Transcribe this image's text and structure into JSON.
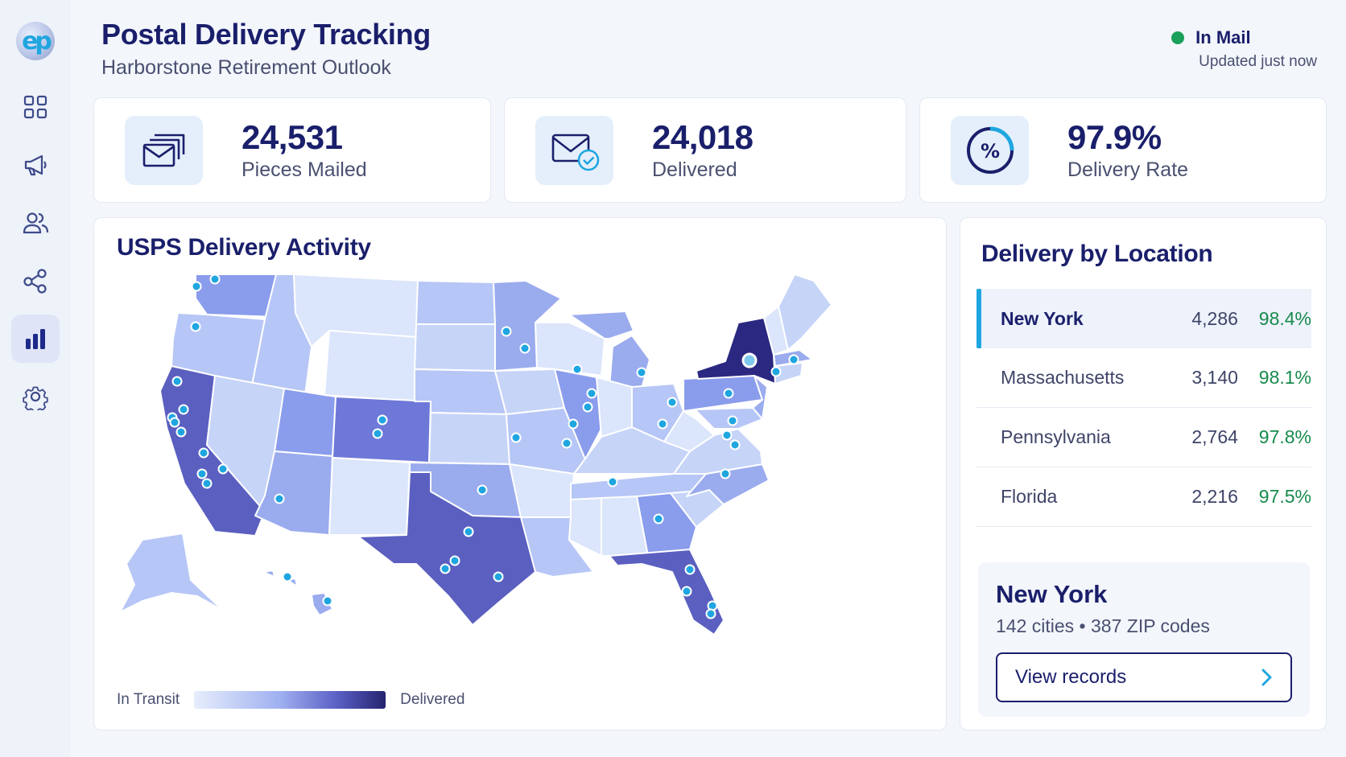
{
  "app": {
    "logo_text": "ep",
    "title": "Postal Delivery Tracking",
    "subtitle": "Harborstone Retirement Outlook"
  },
  "sidebar": {
    "items": [
      {
        "name": "dashboard",
        "icon": "grid-icon",
        "active": false
      },
      {
        "name": "campaigns",
        "icon": "megaphone-icon",
        "active": false
      },
      {
        "name": "audiences",
        "icon": "users-icon",
        "active": false
      },
      {
        "name": "integrations",
        "icon": "share-nodes-icon",
        "active": false
      },
      {
        "name": "analytics",
        "icon": "bar-chart-icon",
        "active": true
      },
      {
        "name": "settings",
        "icon": "gear-icon",
        "active": false
      }
    ]
  },
  "status": {
    "label": "In Mail",
    "updated": "Updated just now",
    "color": "#19a05a"
  },
  "stats": [
    {
      "value": "24,531",
      "label": "Pieces Mailed",
      "icon": "stacked-envelopes-icon"
    },
    {
      "value": "24,018",
      "label": "Delivered",
      "icon": "envelope-check-icon"
    },
    {
      "value": "97.9%",
      "label": "Delivery Rate",
      "icon": "percent-ring-icon"
    }
  ],
  "map": {
    "title": "USPS Delivery Activity",
    "legend_low": "In Transit",
    "legend_high": "Delivered",
    "colors": {
      "highest": "#2a2880",
      "high": "#5a5fc0",
      "mid": "#8a9cec",
      "low": "#b6c6f6",
      "lowest": "#dbe5fb",
      "marker": "#1fa6e0"
    }
  },
  "locations": {
    "title": "Delivery by Location",
    "rows": [
      {
        "name": "New York",
        "count": "4,286",
        "rate": "98.4%",
        "selected": true
      },
      {
        "name": "Massachusetts",
        "count": "3,140",
        "rate": "98.1%",
        "selected": false
      },
      {
        "name": "Pennsylvania",
        "count": "2,764",
        "rate": "97.8%",
        "selected": false
      },
      {
        "name": "Florida",
        "count": "2,216",
        "rate": "97.5%",
        "selected": false
      }
    ],
    "detail": {
      "title": "New York",
      "subtitle": "142 cities  •  387 ZIP codes",
      "button": "View records"
    }
  }
}
